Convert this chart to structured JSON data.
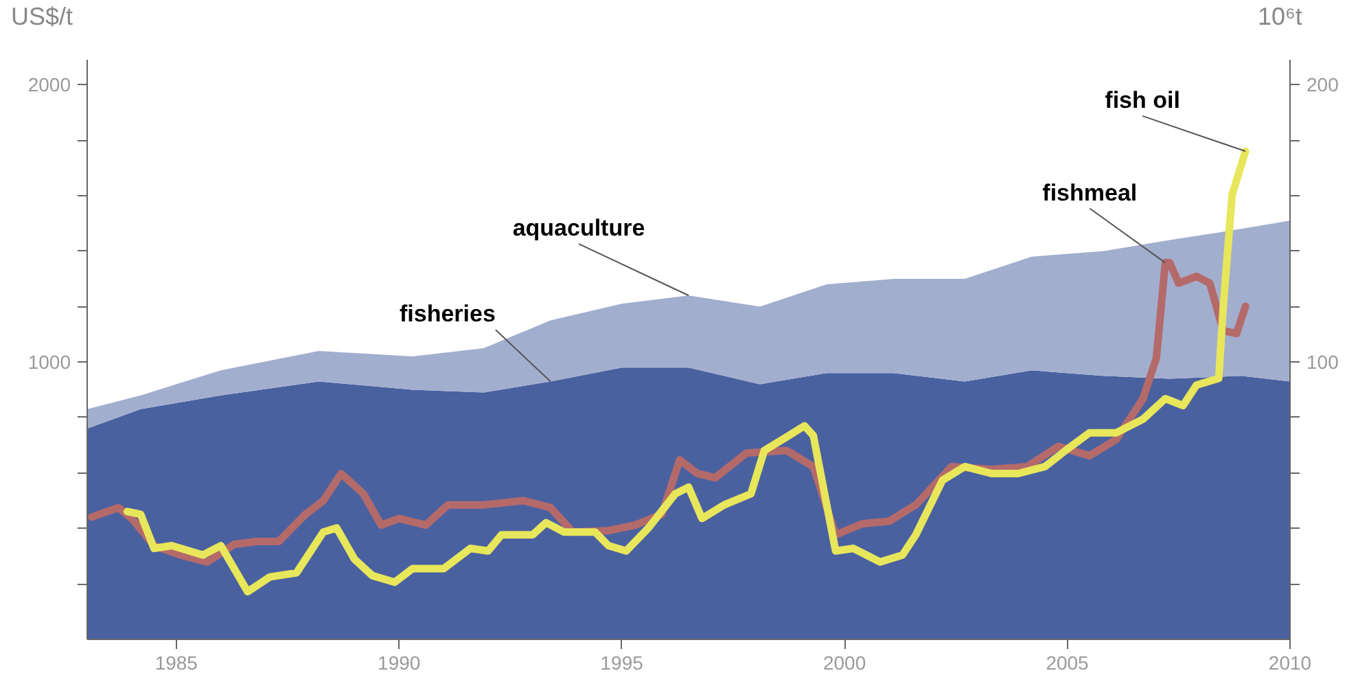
{
  "chart_data": {
    "type": "area",
    "ylabel": "US$/t",
    "y2label": "10⁶t",
    "stacked": true,
    "grid": false,
    "xlim": [
      1983.0,
      2010
    ],
    "xticks": [
      1985,
      1990,
      1995,
      2000,
      2005,
      2010
    ],
    "ylim": [
      0,
      2090
    ],
    "yticks": [
      {
        "value": 200,
        "label": null
      },
      {
        "value": 400,
        "label": null
      },
      {
        "value": 600,
        "label": null
      },
      {
        "value": 800,
        "label": null
      },
      1000,
      {
        "value": 1200,
        "label": null
      },
      {
        "value": 1400,
        "label": null
      },
      {
        "value": 1600,
        "label": null
      },
      {
        "value": 1800,
        "label": null
      },
      2000
    ],
    "y2lim": [
      0,
      209
    ],
    "y2ticks": [
      {
        "value": 20,
        "label": null
      },
      {
        "value": 40,
        "label": null
      },
      {
        "value": 60,
        "label": null
      },
      {
        "value": 80,
        "label": null
      },
      100,
      {
        "value": 120,
        "label": null
      },
      {
        "value": 140,
        "label": null
      },
      {
        "value": 160,
        "label": null
      },
      {
        "value": 180,
        "label": null
      },
      200
    ],
    "series": [
      {
        "name": "fisheries",
        "axis": "y2",
        "color": "#4a61a0",
        "x": [
          1983.0,
          1984.2,
          1986.0,
          1988.2,
          1990.3,
          1991.9,
          1993.4,
          1995.0,
          1996.5,
          1998.1,
          1999.6,
          2001.1,
          2002.7,
          2004.2,
          2005.8,
          2007.3,
          2008.9,
          2010.0
        ],
        "values": [
          76,
          83,
          88,
          93,
          90,
          89,
          93,
          98,
          98,
          92,
          96,
          96,
          93,
          97,
          95,
          94,
          95,
          93
        ]
      },
      {
        "name": "aquaculture",
        "axis": "y2",
        "color": "#a2aece",
        "x": [
          1983.0,
          1984.2,
          1986.0,
          1988.2,
          1990.3,
          1991.9,
          1993.4,
          1995.0,
          1996.5,
          1998.1,
          1999.6,
          2001.1,
          2002.7,
          2004.2,
          2005.8,
          2007.3,
          2008.9,
          2010.0
        ],
        "values": [
          7,
          5,
          9,
          11,
          12,
          16,
          22,
          23,
          26,
          28,
          32,
          34,
          37,
          41,
          45,
          50,
          53,
          58
        ]
      },
      {
        "name": "fishmeal",
        "type": "line",
        "color": "#b56a6a",
        "x": [
          1983.1,
          1983.7,
          1984.0,
          1984.5,
          1985.1,
          1985.7,
          1986.3,
          1986.8,
          1987.3,
          1987.9,
          1988.3,
          1988.7,
          1989.2,
          1989.6,
          1990.0,
          1990.6,
          1991.1,
          1991.9,
          1992.8,
          1993.4,
          1993.9,
          1994.7,
          1995.3,
          1995.9,
          1996.3,
          1996.7,
          1997.1,
          1997.8,
          1998.7,
          1999.3,
          1999.8,
          2000.4,
          2001.0,
          2001.6,
          2002.4,
          2003.3,
          2004.1,
          2004.8,
          2005.5,
          2006.1,
          2006.7,
          2007.0,
          2007.2,
          2007.3,
          2007.5,
          2007.9,
          2008.2,
          2008.5,
          2008.8,
          2009.0
        ],
        "values": [
          441,
          475,
          436,
          338,
          304,
          279,
          343,
          353,
          353,
          451,
          500,
          598,
          525,
          412,
          436,
          412,
          485,
          485,
          500,
          475,
          387,
          392,
          412,
          451,
          647,
          598,
          583,
          672,
          681,
          623,
          377,
          417,
          426,
          485,
          623,
          613,
          623,
          696,
          662,
          721,
          868,
          1015,
          1358,
          1358,
          1284,
          1309,
          1284,
          1113,
          1103,
          1201
        ]
      },
      {
        "name": "fish oil",
        "type": "line",
        "color": "#e8e65a",
        "x": [
          1983.9,
          1984.2,
          1984.5,
          1984.9,
          1985.6,
          1986.0,
          1986.3,
          1986.6,
          1987.1,
          1987.7,
          1988.3,
          1988.6,
          1989.0,
          1989.4,
          1989.9,
          1990.3,
          1991.0,
          1991.6,
          1992.0,
          1992.3,
          1993.0,
          1993.3,
          1993.7,
          1994.4,
          1994.7,
          1995.1,
          1995.6,
          1996.2,
          1996.5,
          1996.8,
          1997.3,
          1997.9,
          1998.2,
          1998.7,
          1999.1,
          1999.3,
          1999.8,
          2000.2,
          2000.8,
          2001.3,
          2001.6,
          2002.2,
          2002.7,
          2003.3,
          2003.9,
          2004.5,
          2005.0,
          2005.5,
          2006.1,
          2006.7,
          2007.2,
          2007.6,
          2007.9,
          2008.4,
          2008.5,
          2008.7,
          2009.0
        ],
        "values": [
          461,
          451,
          328,
          338,
          304,
          338,
          255,
          172,
          225,
          240,
          387,
          402,
          289,
          230,
          206,
          255,
          255,
          328,
          319,
          377,
          377,
          421,
          387,
          387,
          338,
          319,
          402,
          525,
          549,
          436,
          485,
          525,
          681,
          730,
          770,
          735,
          319,
          328,
          279,
          304,
          377,
          574,
          623,
          598,
          598,
          623,
          686,
          745,
          745,
          794,
          868,
          843,
          917,
          941,
          1196,
          1603,
          1760
        ]
      }
    ]
  }
}
